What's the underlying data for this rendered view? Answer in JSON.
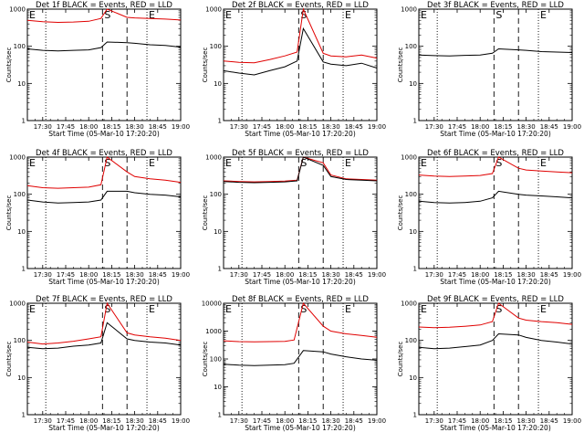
{
  "chart_data": {
    "type": "line",
    "layout": "3x3 grid",
    "xlabel": "Start Time (05-Mar-10 17:20:20)",
    "ylabel": "Counts/sec",
    "x_ticks": [
      "17:30",
      "17:45",
      "18:00",
      "18:15",
      "18:30",
      "18:45",
      "19:00"
    ],
    "x_range": [
      "17:20",
      "19:00"
    ],
    "y_scale": "log",
    "series_colors": {
      "events": "#000000",
      "lld": "#e00000"
    },
    "dotted_vlines": [
      "17:32",
      "18:38"
    ],
    "dashed_vlines": [
      "18:09",
      "18:25"
    ],
    "markers": [
      "E",
      "S",
      "E"
    ],
    "panels": [
      {
        "title": "Det 1f BLACK = Events, RED = LLD",
        "ylim": [
          1,
          1000
        ],
        "y_ticks": [
          "1",
          "10",
          "100",
          "1000"
        ],
        "events": {
          "x": [
            "17:20",
            "17:30",
            "17:40",
            "17:50",
            "18:00",
            "18:08",
            "18:12",
            "18:25",
            "18:30",
            "18:40",
            "18:50",
            "19:00"
          ],
          "y": [
            85,
            78,
            75,
            78,
            80,
            92,
            130,
            125,
            120,
            110,
            105,
            95
          ]
        },
        "lld": {
          "x": [
            "17:20",
            "17:30",
            "17:40",
            "17:50",
            "18:00",
            "18:08",
            "18:12",
            "18:25",
            "18:30",
            "18:40",
            "18:50",
            "19:00"
          ],
          "y": [
            500,
            460,
            440,
            450,
            470,
            560,
            1000,
            600,
            580,
            560,
            540,
            510
          ]
        }
      },
      {
        "title": "Det 2f BLACK = Events, RED = LLD",
        "ylim": [
          1,
          1000
        ],
        "y_ticks": [
          "1",
          "10",
          "100",
          "1000"
        ],
        "events": {
          "x": [
            "17:20",
            "17:30",
            "17:40",
            "17:50",
            "18:00",
            "18:08",
            "18:12",
            "18:25",
            "18:30",
            "18:40",
            "18:50",
            "19:00"
          ],
          "y": [
            22,
            19,
            17,
            22,
            28,
            40,
            300,
            38,
            33,
            30,
            35,
            26
          ]
        },
        "lld": {
          "x": [
            "17:20",
            "17:30",
            "17:40",
            "17:50",
            "18:00",
            "18:08",
            "18:12",
            "18:25",
            "18:30",
            "18:40",
            "18:50",
            "19:00"
          ],
          "y": [
            40,
            37,
            36,
            44,
            55,
            70,
            1000,
            65,
            55,
            52,
            58,
            48
          ]
        }
      },
      {
        "title": "Det 3f BLACK = Events, RED = LLD",
        "ylim": [
          1,
          1000
        ],
        "y_ticks": [
          "1",
          "10",
          "100",
          "1000"
        ],
        "events": {
          "x": [
            "17:20",
            "17:30",
            "17:40",
            "17:50",
            "18:00",
            "18:08",
            "18:12",
            "18:25",
            "18:30",
            "18:40",
            "18:50",
            "19:00"
          ],
          "y": [
            58,
            56,
            55,
            57,
            58,
            65,
            85,
            80,
            78,
            72,
            70,
            68
          ]
        },
        "lld": {
          "x": [],
          "y": []
        }
      },
      {
        "title": "Det 4f BLACK = Events, RED = LLD",
        "ylim": [
          1,
          1000
        ],
        "y_ticks": [
          "1",
          "10",
          "100",
          "1000"
        ],
        "events": {
          "x": [
            "17:20",
            "17:30",
            "17:40",
            "17:50",
            "18:00",
            "18:08",
            "18:12",
            "18:25",
            "18:30",
            "18:40",
            "18:50",
            "19:00"
          ],
          "y": [
            70,
            62,
            58,
            60,
            62,
            70,
            120,
            120,
            110,
            100,
            95,
            85
          ]
        },
        "lld": {
          "x": [
            "17:20",
            "17:30",
            "17:40",
            "17:50",
            "18:00",
            "18:08",
            "18:12",
            "18:25",
            "18:30",
            "18:40",
            "18:50",
            "19:00"
          ],
          "y": [
            170,
            150,
            145,
            150,
            155,
            180,
            1000,
            400,
            300,
            260,
            240,
            210
          ]
        }
      },
      {
        "title": "Det 5f BLACK = Events, RED = LLD",
        "ylim": [
          1,
          1000
        ],
        "y_ticks": [
          "1",
          "10",
          "100",
          "1000"
        ],
        "events": {
          "x": [
            "17:20",
            "17:30",
            "17:40",
            "17:50",
            "18:00",
            "18:08",
            "18:12",
            "18:25",
            "18:30",
            "18:40",
            "18:50",
            "19:00"
          ],
          "y": [
            220,
            210,
            205,
            210,
            215,
            230,
            1000,
            600,
            300,
            250,
            240,
            230
          ]
        },
        "lld": {
          "x": [
            "17:20",
            "17:30",
            "17:40",
            "17:50",
            "18:00",
            "18:08",
            "18:12",
            "18:25",
            "18:30",
            "18:40",
            "18:50",
            "19:00"
          ],
          "y": [
            230,
            220,
            215,
            220,
            225,
            240,
            1000,
            700,
            330,
            260,
            250,
            240
          ]
        }
      },
      {
        "title": "Det 6f BLACK = Events, RED = LLD",
        "ylim": [
          1,
          1000
        ],
        "y_ticks": [
          "1",
          "10",
          "100",
          "1000"
        ],
        "events": {
          "x": [
            "17:20",
            "17:30",
            "17:40",
            "17:50",
            "18:00",
            "18:08",
            "18:12",
            "18:25",
            "18:30",
            "18:40",
            "18:50",
            "19:00"
          ],
          "y": [
            65,
            60,
            58,
            60,
            65,
            80,
            120,
            100,
            95,
            90,
            85,
            80
          ]
        },
        "lld": {
          "x": [
            "17:20",
            "17:30",
            "17:40",
            "17:50",
            "18:00",
            "18:08",
            "18:12",
            "18:25",
            "18:30",
            "18:40",
            "18:50",
            "19:00"
          ],
          "y": [
            330,
            310,
            300,
            310,
            320,
            360,
            1000,
            500,
            450,
            420,
            400,
            380
          ]
        }
      },
      {
        "title": "Det 7f BLACK = Events, RED = LLD",
        "ylim": [
          1,
          1000
        ],
        "y_ticks": [
          "1",
          "10",
          "100",
          "1000"
        ],
        "events": {
          "x": [
            "17:20",
            "17:30",
            "17:40",
            "17:50",
            "18:00",
            "18:08",
            "18:12",
            "18:25",
            "18:30",
            "18:40",
            "18:50",
            "19:00"
          ],
          "y": [
            65,
            60,
            62,
            70,
            75,
            85,
            300,
            110,
            100,
            90,
            85,
            75
          ]
        },
        "lld": {
          "x": [
            "17:20",
            "17:30",
            "17:40",
            "17:50",
            "18:00",
            "18:08",
            "18:12",
            "18:25",
            "18:30",
            "18:40",
            "18:50",
            "19:00"
          ],
          "y": [
            90,
            80,
            85,
            95,
            110,
            125,
            1000,
            160,
            140,
            125,
            115,
            100
          ]
        }
      },
      {
        "title": "Det 8f BLACK = Events, RED = LLD",
        "ylim": [
          1,
          10000
        ],
        "y_ticks": [
          "1",
          "10",
          "100",
          "1000",
          "10000"
        ],
        "events": {
          "x": [
            "17:20",
            "17:30",
            "17:40",
            "17:50",
            "18:00",
            "18:06",
            "18:12",
            "18:25",
            "18:30",
            "18:40",
            "18:50",
            "19:00"
          ],
          "y": [
            65,
            60,
            58,
            60,
            62,
            70,
            200,
            180,
            150,
            120,
            100,
            90
          ]
        },
        "lld": {
          "x": [
            "17:20",
            "17:30",
            "17:40",
            "17:50",
            "18:00",
            "18:06",
            "18:12",
            "18:25",
            "18:30",
            "18:40",
            "18:50",
            "19:00"
          ],
          "y": [
            450,
            420,
            410,
            420,
            430,
            480,
            10000,
            1500,
            1000,
            800,
            700,
            600
          ]
        }
      },
      {
        "title": "Det 9f BLACK = Events, RED = LLD",
        "ylim": [
          1,
          1000
        ],
        "y_ticks": [
          "1",
          "10",
          "100",
          "1000"
        ],
        "events": {
          "x": [
            "17:20",
            "17:30",
            "17:40",
            "17:50",
            "18:00",
            "18:08",
            "18:12",
            "18:25",
            "18:30",
            "18:40",
            "18:50",
            "19:00"
          ],
          "y": [
            65,
            60,
            62,
            68,
            75,
            100,
            150,
            140,
            120,
            100,
            90,
            80
          ]
        },
        "lld": {
          "x": [
            "17:20",
            "17:30",
            "17:40",
            "17:50",
            "18:00",
            "18:08",
            "18:12",
            "18:25",
            "18:30",
            "18:40",
            "18:50",
            "19:00"
          ],
          "y": [
            230,
            220,
            225,
            240,
            260,
            320,
            1000,
            400,
            350,
            320,
            300,
            270
          ]
        }
      }
    ]
  }
}
